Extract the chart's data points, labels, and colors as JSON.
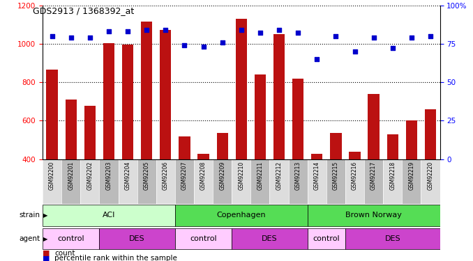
{
  "title": "GDS2913 / 1368392_at",
  "samples": [
    "GSM92200",
    "GSM92201",
    "GSM92202",
    "GSM92203",
    "GSM92204",
    "GSM92205",
    "GSM92206",
    "GSM92207",
    "GSM92208",
    "GSM92209",
    "GSM92210",
    "GSM92211",
    "GSM92212",
    "GSM92213",
    "GSM92214",
    "GSM92215",
    "GSM92216",
    "GSM92217",
    "GSM92218",
    "GSM92219",
    "GSM92220"
  ],
  "counts": [
    867,
    710,
    678,
    1003,
    997,
    1115,
    1073,
    520,
    428,
    536,
    1130,
    840,
    1050,
    820,
    428,
    535,
    440,
    740,
    530,
    600,
    660
  ],
  "percentiles": [
    80,
    79,
    79,
    83,
    83,
    84,
    84,
    74,
    73,
    76,
    84,
    82,
    84,
    82,
    65,
    80,
    70,
    79,
    72,
    79,
    80
  ],
  "ylim_left": [
    400,
    1200
  ],
  "ylim_right": [
    0,
    100
  ],
  "yticks_left": [
    400,
    600,
    800,
    1000,
    1200
  ],
  "yticks_right": [
    0,
    25,
    50,
    75,
    100
  ],
  "bar_color": "#bb1111",
  "dot_color": "#0000cc",
  "tick_bg_even": "#dddddd",
  "tick_bg_odd": "#bbbbbb",
  "strain_groups": [
    {
      "label": "ACI",
      "start": 0,
      "end": 6,
      "color": "#ccffcc"
    },
    {
      "label": "Copenhagen",
      "start": 7,
      "end": 13,
      "color": "#55dd55"
    },
    {
      "label": "Brown Norway",
      "start": 14,
      "end": 20,
      "color": "#55dd55"
    }
  ],
  "agent_groups": [
    {
      "label": "control",
      "start": 0,
      "end": 2,
      "color": "#ffccff"
    },
    {
      "label": "DES",
      "start": 3,
      "end": 6,
      "color": "#cc44cc"
    },
    {
      "label": "control",
      "start": 7,
      "end": 9,
      "color": "#ffccff"
    },
    {
      "label": "DES",
      "start": 10,
      "end": 13,
      "color": "#cc44cc"
    },
    {
      "label": "control",
      "start": 14,
      "end": 15,
      "color": "#ffccff"
    },
    {
      "label": "DES",
      "start": 16,
      "end": 20,
      "color": "#cc44cc"
    }
  ],
  "legend_count_label": "count",
  "legend_pct_label": "percentile rank within the sample",
  "bg_color": "#ffffff"
}
